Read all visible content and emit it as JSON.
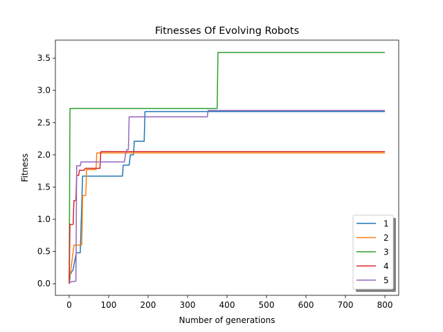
{
  "chart_data": {
    "type": "line",
    "title": "Fitnesses Of Evolving Robots",
    "xlabel": "Number of generations",
    "ylabel": "Fitness",
    "xlim": [
      -35,
      835
    ],
    "ylim": [
      -0.18,
      3.78
    ],
    "xticks": [
      0,
      100,
      200,
      300,
      400,
      500,
      600,
      700,
      800
    ],
    "yticks": [
      0.0,
      0.5,
      1.0,
      1.5,
      2.0,
      2.5,
      3.0,
      3.5
    ],
    "grid": false,
    "legend_position": "lower right",
    "series": [
      {
        "name": "1",
        "color": "#1f77b4",
        "points": [
          [
            0,
            0.0
          ],
          [
            3,
            0.15
          ],
          [
            10,
            0.22
          ],
          [
            18,
            0.48
          ],
          [
            28,
            0.48
          ],
          [
            34,
            1.67
          ],
          [
            135,
            1.67
          ],
          [
            137,
            1.84
          ],
          [
            152,
            1.84
          ],
          [
            155,
            2.0
          ],
          [
            163,
            2.0
          ],
          [
            165,
            2.21
          ],
          [
            190,
            2.21
          ],
          [
            192,
            2.67
          ],
          [
            800,
            2.67
          ]
        ]
      },
      {
        "name": "2",
        "color": "#ff7f0e",
        "points": [
          [
            0,
            0.1
          ],
          [
            2,
            0.12
          ],
          [
            6,
            0.3
          ],
          [
            12,
            0.6
          ],
          [
            32,
            0.6
          ],
          [
            34,
            1.37
          ],
          [
            42,
            1.37
          ],
          [
            44,
            1.77
          ],
          [
            68,
            1.77
          ],
          [
            70,
            2.03
          ],
          [
            800,
            2.03
          ]
        ]
      },
      {
        "name": "3",
        "color": "#2ca02c",
        "points": [
          [
            0,
            0.05
          ],
          [
            2,
            2.72
          ],
          [
            375,
            2.72
          ],
          [
            377,
            3.59
          ],
          [
            800,
            3.59
          ]
        ]
      },
      {
        "name": "4",
        "color": "#d62728",
        "points": [
          [
            0,
            0.0
          ],
          [
            2,
            0.92
          ],
          [
            10,
            0.92
          ],
          [
            12,
            1.29
          ],
          [
            17,
            1.29
          ],
          [
            19,
            1.68
          ],
          [
            24,
            1.68
          ],
          [
            26,
            1.76
          ],
          [
            38,
            1.76
          ],
          [
            40,
            1.79
          ],
          [
            78,
            1.79
          ],
          [
            80,
            2.05
          ],
          [
            800,
            2.05
          ]
        ]
      },
      {
        "name": "5",
        "color": "#9467bd",
        "points": [
          [
            0,
            0.01
          ],
          [
            4,
            0.03
          ],
          [
            17,
            0.04
          ],
          [
            19,
            1.83
          ],
          [
            28,
            1.83
          ],
          [
            30,
            1.89
          ],
          [
            140,
            1.89
          ],
          [
            143,
            2.02
          ],
          [
            146,
            2.08
          ],
          [
            150,
            2.08
          ],
          [
            152,
            2.59
          ],
          [
            350,
            2.59
          ],
          [
            352,
            2.69
          ],
          [
            800,
            2.69
          ]
        ]
      }
    ]
  }
}
